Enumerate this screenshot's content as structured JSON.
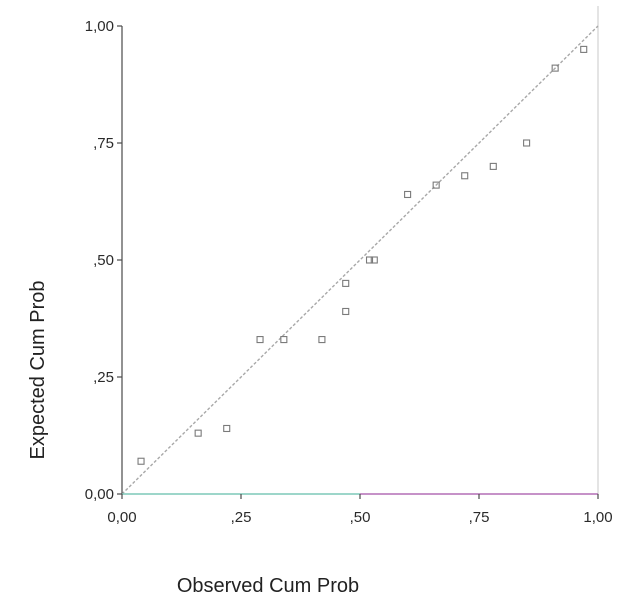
{
  "chart_data": {
    "type": "scatter",
    "title": "",
    "xlabel": "Observed Cum Prob",
    "ylabel": "Expected Cum Prob",
    "xlim": [
      0,
      1
    ],
    "ylim": [
      0,
      1
    ],
    "x_ticks": [
      {
        "value": 0.0,
        "label": "0,00"
      },
      {
        "value": 0.25,
        "label": ",25"
      },
      {
        "value": 0.5,
        "label": ",50"
      },
      {
        "value": 0.75,
        "label": ",75"
      },
      {
        "value": 1.0,
        "label": "1,00"
      }
    ],
    "y_ticks": [
      {
        "value": 0.0,
        "label": "0,00"
      },
      {
        "value": 0.25,
        "label": ",25"
      },
      {
        "value": 0.5,
        "label": ",50"
      },
      {
        "value": 0.75,
        "label": ",75"
      },
      {
        "value": 1.0,
        "label": "1,00"
      }
    ],
    "grid": false,
    "reference_line": {
      "from": [
        0,
        0
      ],
      "to": [
        1,
        1
      ],
      "color": "#a8a8a8"
    },
    "points": [
      {
        "x": 0.04,
        "y": 0.07
      },
      {
        "x": 0.16,
        "y": 0.13
      },
      {
        "x": 0.22,
        "y": 0.14
      },
      {
        "x": 0.29,
        "y": 0.33
      },
      {
        "x": 0.34,
        "y": 0.33
      },
      {
        "x": 0.42,
        "y": 0.33
      },
      {
        "x": 0.47,
        "y": 0.39
      },
      {
        "x": 0.47,
        "y": 0.45
      },
      {
        "x": 0.52,
        "y": 0.5
      },
      {
        "x": 0.53,
        "y": 0.5
      },
      {
        "x": 0.6,
        "y": 0.64
      },
      {
        "x": 0.66,
        "y": 0.66
      },
      {
        "x": 0.72,
        "y": 0.68
      },
      {
        "x": 0.78,
        "y": 0.7
      },
      {
        "x": 0.85,
        "y": 0.75
      },
      {
        "x": 0.91,
        "y": 0.91
      },
      {
        "x": 0.97,
        "y": 0.95
      }
    ],
    "colors": {
      "axis": "#4a4a4a",
      "point": "#7a7a7a",
      "x_axis_line": "#b36fb6",
      "x_axis_line_left": "#7dc8b8",
      "right_border": "#c8c8c8",
      "text": "#222222"
    }
  }
}
